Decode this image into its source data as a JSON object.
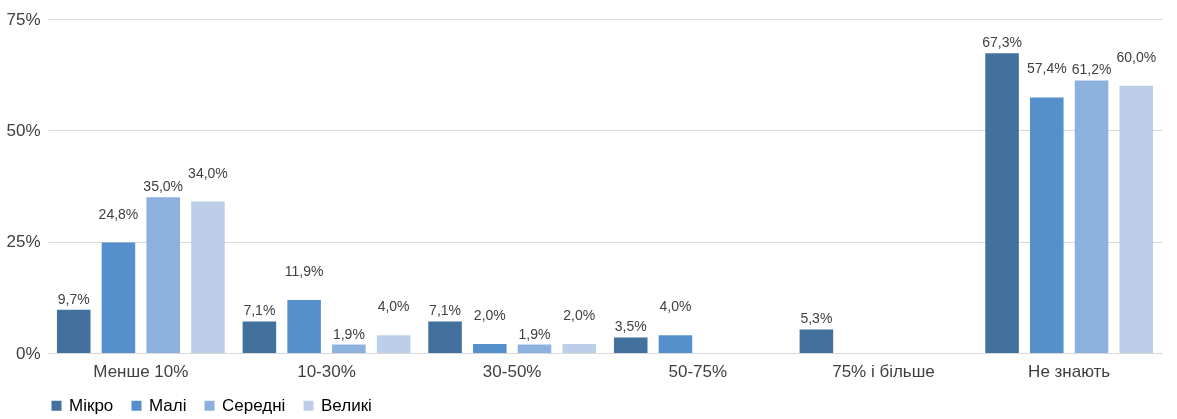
{
  "chart_data": {
    "type": "bar",
    "categories": [
      "Менше 10%",
      "10-30%",
      "30-50%",
      "50-75%",
      "75% і більше",
      "Не знають"
    ],
    "ylim": [
      0,
      75
    ],
    "yticks": [
      {
        "value": 0,
        "label": "0%"
      },
      {
        "value": 25,
        "label": "25%"
      },
      {
        "value": 50,
        "label": "50%"
      },
      {
        "value": 75,
        "label": "75%"
      }
    ],
    "grid": "y",
    "legend": "bottom",
    "series": [
      {
        "name": "Мікро",
        "color": "#41719c",
        "values": [
          9.7,
          7.1,
          7.1,
          3.5,
          5.3,
          67.3
        ],
        "value_labels": [
          "9,7%",
          "7,1%",
          "7,1%",
          "3,5%",
          "5,3%",
          "67,3%"
        ]
      },
      {
        "name": "Малі",
        "color": "#5590cc",
        "values": [
          24.8,
          11.9,
          2.0,
          4.0,
          null,
          57.4
        ],
        "value_labels": [
          "24,8%",
          "11,9%",
          "2,0%",
          "4,0%",
          null,
          "57,4%"
        ]
      },
      {
        "name": "Середні",
        "color": "#8cb1de",
        "values": [
          35.0,
          1.9,
          1.9,
          null,
          null,
          61.2
        ],
        "value_labels": [
          "35,0%",
          "1,9%",
          "1,9%",
          null,
          null,
          "61,2%"
        ]
      },
      {
        "name": "Великі",
        "color": "#bccfe9",
        "values": [
          34.0,
          4.0,
          2.0,
          null,
          null,
          60.0
        ],
        "value_labels": [
          "34,0%",
          "4,0%",
          "2,0%",
          null,
          null,
          "60,0%"
        ]
      }
    ]
  }
}
